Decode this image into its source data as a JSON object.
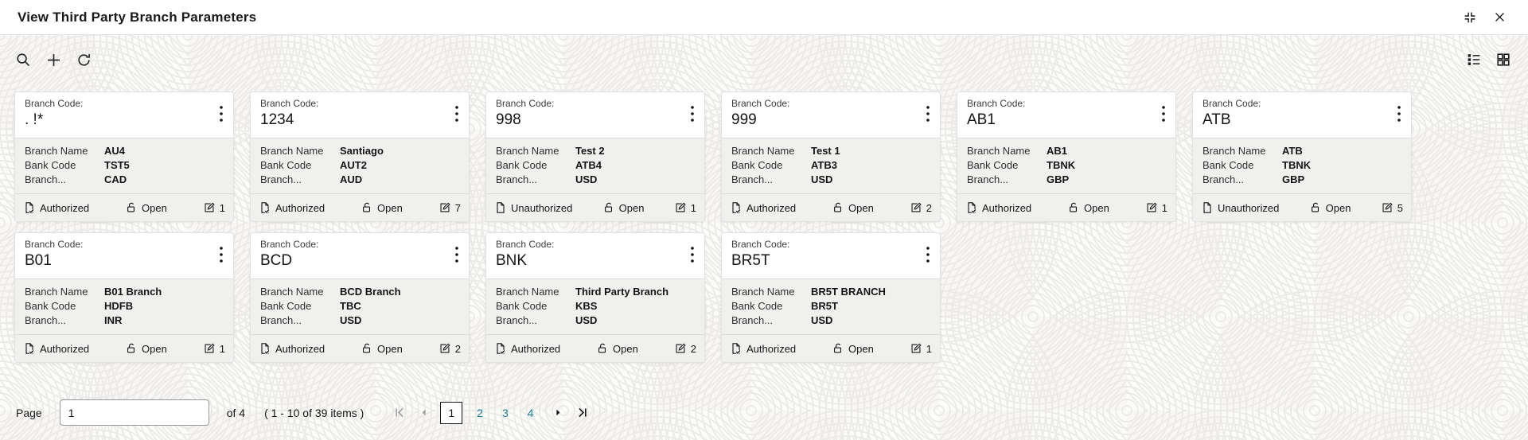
{
  "header": {
    "title": "View Third Party Branch Parameters",
    "icons": [
      "collapse-icon",
      "close-icon"
    ]
  },
  "toolbar": {
    "left_icons": [
      "search-icon",
      "add-icon",
      "refresh-icon"
    ],
    "right_icons": [
      "list-view-icon",
      "grid-view-icon"
    ]
  },
  "labels": {
    "branch_code": "Branch Code:",
    "branch_name": "Branch Name",
    "bank_code": "Bank Code",
    "branch_currency": "Branch..."
  },
  "cards": [
    {
      "branch_code": ". !*",
      "branch_name": "AU4",
      "bank_code": "TST5",
      "branch_currency": "CAD",
      "authorization": "Authorized",
      "record_status": "Open",
      "edit_count": "1"
    },
    {
      "branch_code": "1234",
      "branch_name": "Santiago",
      "bank_code": "AUT2",
      "branch_currency": "AUD",
      "authorization": "Authorized",
      "record_status": "Open",
      "edit_count": "7"
    },
    {
      "branch_code": "998",
      "branch_name": "Test 2",
      "bank_code": "ATB4",
      "branch_currency": "USD",
      "authorization": "Unauthorized",
      "record_status": "Open",
      "edit_count": "1"
    },
    {
      "branch_code": "999",
      "branch_name": "Test 1",
      "bank_code": "ATB3",
      "branch_currency": "USD",
      "authorization": "Authorized",
      "record_status": "Open",
      "edit_count": "2"
    },
    {
      "branch_code": "AB1",
      "branch_name": "AB1",
      "bank_code": "TBNK",
      "branch_currency": "GBP",
      "authorization": "Authorized",
      "record_status": "Open",
      "edit_count": "1"
    },
    {
      "branch_code": "ATB",
      "branch_name": "ATB",
      "bank_code": "TBNK",
      "branch_currency": "GBP",
      "authorization": "Unauthorized",
      "record_status": "Open",
      "edit_count": "5"
    },
    {
      "branch_code": "B01",
      "branch_name": "B01 Branch",
      "bank_code": "HDFB",
      "branch_currency": "INR",
      "authorization": "Authorized",
      "record_status": "Open",
      "edit_count": "1"
    },
    {
      "branch_code": "BCD",
      "branch_name": "BCD Branch",
      "bank_code": "TBC",
      "branch_currency": "USD",
      "authorization": "Authorized",
      "record_status": "Open",
      "edit_count": "2"
    },
    {
      "branch_code": "BNK",
      "branch_name": "Third Party Branch",
      "bank_code": "KBS",
      "branch_currency": "USD",
      "authorization": "Authorized",
      "record_status": "Open",
      "edit_count": "2"
    },
    {
      "branch_code": "BR5T",
      "branch_name": "BR5T BRANCH",
      "bank_code": "BR5T",
      "branch_currency": "USD",
      "authorization": "Authorized",
      "record_status": "Open",
      "edit_count": "1"
    }
  ],
  "card_icons": [
    "kebab-menu-icon",
    "authorized-doc-icon",
    "unauthorized-doc-icon",
    "open-lock-icon",
    "edit-count-icon"
  ],
  "pagination": {
    "page_label": "Page",
    "page_value": "1",
    "of_text": "of 4",
    "range_text": "( 1 - 10 of 39 items )",
    "pages": [
      "1",
      "2",
      "3",
      "4"
    ],
    "current_page": "1",
    "nav_icons": [
      "first-page-icon",
      "previous-page-icon",
      "next-page-icon",
      "last-page-icon"
    ]
  },
  "colors": {
    "accent_link": "#1c7d95",
    "text": "#161616",
    "disabled_nav": "#9f9f9f",
    "card_section_bg": "#f0f0ef",
    "pattern_bg": "#f8f7f6"
  }
}
